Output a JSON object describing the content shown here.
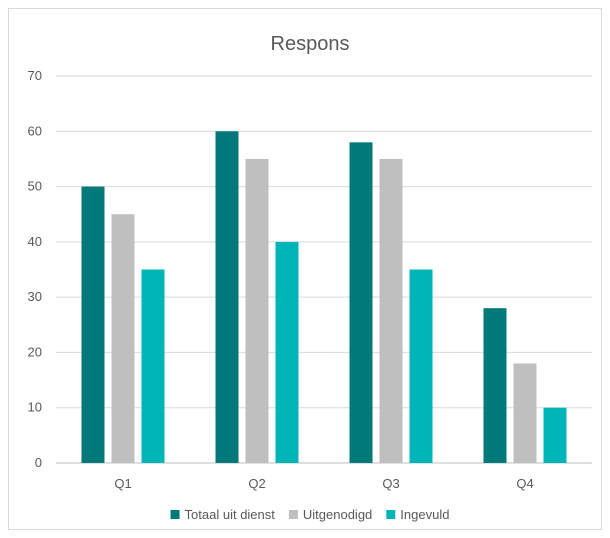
{
  "chart_data": {
    "type": "bar",
    "title": "Respons",
    "categories": [
      "Q1",
      "Q2",
      "Q3",
      "Q4"
    ],
    "series": [
      {
        "name": "Totaal uit dienst",
        "color": "#007a78",
        "values": [
          50,
          60,
          58,
          28
        ]
      },
      {
        "name": "Uitgenodigd",
        "color": "#bfbfbf",
        "values": [
          45,
          55,
          55,
          18
        ]
      },
      {
        "name": "Ingevuld",
        "color": "#00b5b8",
        "values": [
          35,
          40,
          35,
          10
        ]
      }
    ],
    "ylim": [
      0,
      70
    ],
    "yticks": [
      "0",
      "10",
      "20",
      "30",
      "40",
      "50",
      "60",
      "70"
    ],
    "grid": true,
    "legend": "bottom"
  }
}
